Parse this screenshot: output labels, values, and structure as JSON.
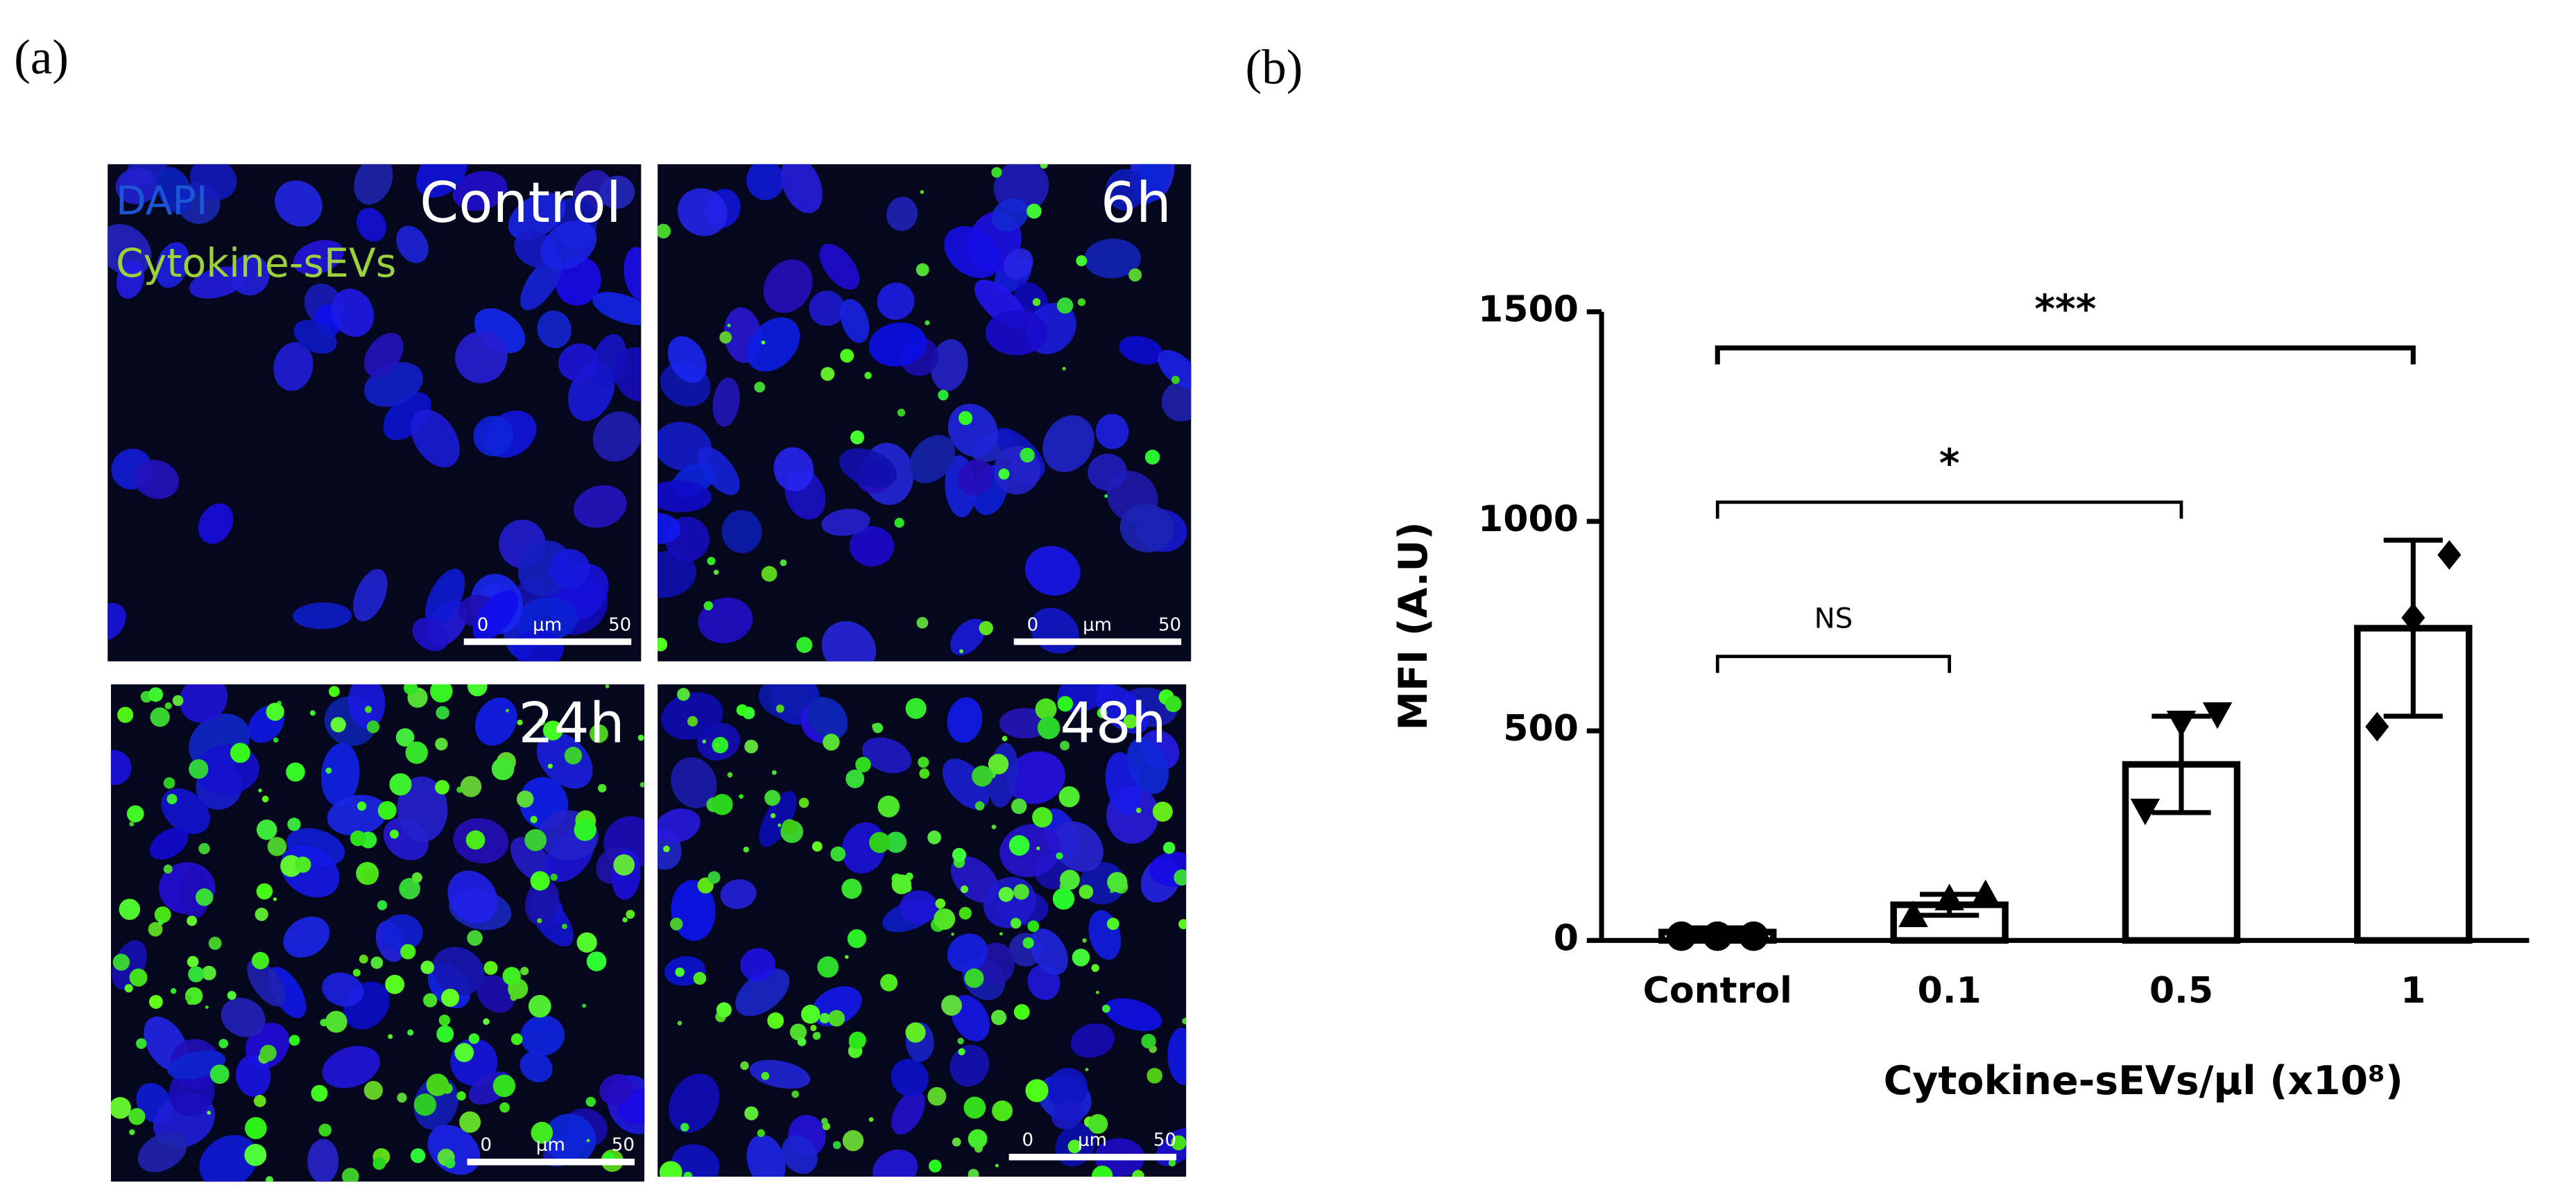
{
  "figure": {
    "panel_labels": [
      "(a)",
      "(b)"
    ],
    "stain_labels": [
      {
        "text": "DAPI",
        "color": "#1a56d6"
      },
      {
        "text": "Cytokine-sEVs",
        "color": "#9bd23c"
      }
    ],
    "images": [
      {
        "label": "Control"
      },
      {
        "label": "6h"
      },
      {
        "label": "24h"
      },
      {
        "label": "48h"
      }
    ],
    "scale_bar": [
      "0",
      "μm",
      "50"
    ]
  },
  "chart_data": {
    "type": "bar",
    "y_label": "MFI (A.U)",
    "x_label": "Cytokine-sEVs/μl (x10⁸)",
    "categories": [
      "Control",
      "0.1",
      "0.5",
      "1"
    ],
    "values": [
      20,
      85,
      420,
      745
    ],
    "errors": [
      10,
      25,
      115,
      210
    ],
    "points": [
      [
        10,
        10,
        10
      ],
      [
        60,
        100,
        110
      ],
      [
        310,
        520,
        540
      ],
      [
        510,
        770,
        920
      ]
    ],
    "markers": [
      "circle",
      "triangle-up",
      "triangle-down",
      "diamond"
    ],
    "color": "#ffffff",
    "edge_color": "#000000",
    "annotations": [
      "NS",
      "*",
      "***"
    ],
    "ylim": [
      0,
      1500
    ],
    "yticks": [
      0,
      500,
      1000,
      1500
    ]
  }
}
